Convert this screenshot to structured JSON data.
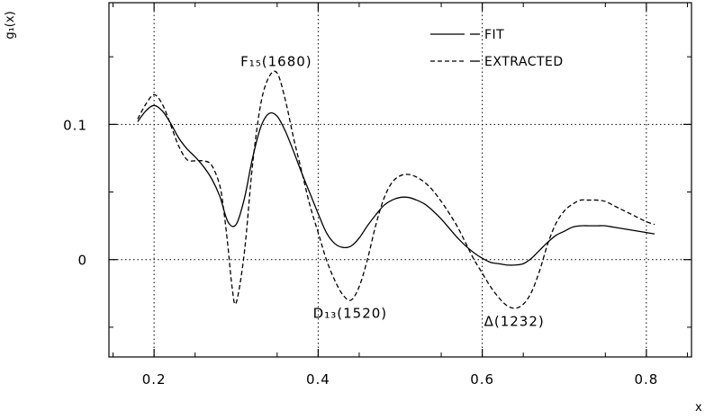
{
  "chart_data": {
    "type": "line",
    "ylabel": "g₁(x)",
    "xlabel": "x",
    "xlim": [
      0.145,
      0.855
    ],
    "ylim": [
      -0.072,
      0.19
    ],
    "x_ticks": [
      {
        "value": 0.2,
        "label": "0.2"
      },
      {
        "value": 0.4,
        "label": "0.4"
      },
      {
        "value": 0.6,
        "label": "0.6"
      },
      {
        "value": 0.8,
        "label": "0.8"
      }
    ],
    "y_ticks": [
      {
        "value": 0,
        "label": "0"
      },
      {
        "value": 0.1,
        "label": "0.1"
      }
    ],
    "grid": true,
    "legend_position": "top-right",
    "series": [
      {
        "name": "FIT",
        "style": "solid",
        "x": [
          0.18,
          0.19,
          0.2,
          0.21,
          0.22,
          0.23,
          0.24,
          0.25,
          0.26,
          0.27,
          0.28,
          0.29,
          0.3,
          0.31,
          0.32,
          0.33,
          0.34,
          0.35,
          0.36,
          0.37,
          0.38,
          0.39,
          0.4,
          0.41,
          0.42,
          0.43,
          0.44,
          0.45,
          0.46,
          0.47,
          0.48,
          0.49,
          0.5,
          0.51,
          0.52,
          0.53,
          0.54,
          0.55,
          0.56,
          0.57,
          0.58,
          0.59,
          0.6,
          0.61,
          0.62,
          0.63,
          0.64,
          0.65,
          0.66,
          0.67,
          0.68,
          0.69,
          0.7,
          0.71,
          0.72,
          0.73,
          0.74,
          0.75,
          0.76,
          0.77,
          0.78,
          0.79,
          0.8,
          0.81
        ],
        "y": [
          0.102,
          0.11,
          0.114,
          0.11,
          0.101,
          0.09,
          0.082,
          0.076,
          0.069,
          0.06,
          0.047,
          0.028,
          0.026,
          0.045,
          0.075,
          0.098,
          0.108,
          0.106,
          0.095,
          0.08,
          0.064,
          0.049,
          0.034,
          0.02,
          0.012,
          0.009,
          0.01,
          0.016,
          0.025,
          0.033,
          0.04,
          0.044,
          0.046,
          0.046,
          0.044,
          0.041,
          0.036,
          0.03,
          0.023,
          0.016,
          0.01,
          0.005,
          0.001,
          -0.002,
          -0.003,
          -0.004,
          -0.004,
          -0.003,
          0.001,
          0.007,
          0.013,
          0.018,
          0.021,
          0.024,
          0.025,
          0.025,
          0.025,
          0.025,
          0.024,
          0.023,
          0.022,
          0.021,
          0.02,
          0.019
        ]
      },
      {
        "name": "EXTRACTED",
        "style": "dashed",
        "x": [
          0.18,
          0.19,
          0.2,
          0.21,
          0.22,
          0.23,
          0.24,
          0.25,
          0.26,
          0.27,
          0.28,
          0.285,
          0.29,
          0.295,
          0.3,
          0.31,
          0.32,
          0.33,
          0.34,
          0.35,
          0.36,
          0.37,
          0.38,
          0.39,
          0.4,
          0.41,
          0.42,
          0.43,
          0.44,
          0.45,
          0.46,
          0.47,
          0.48,
          0.49,
          0.5,
          0.51,
          0.52,
          0.53,
          0.54,
          0.55,
          0.56,
          0.57,
          0.58,
          0.59,
          0.6,
          0.61,
          0.62,
          0.63,
          0.64,
          0.65,
          0.66,
          0.67,
          0.68,
          0.69,
          0.7,
          0.71,
          0.72,
          0.73,
          0.74,
          0.75,
          0.76,
          0.77,
          0.78,
          0.79,
          0.8,
          0.81
        ],
        "y": [
          0.104,
          0.115,
          0.122,
          0.115,
          0.1,
          0.084,
          0.074,
          0.073,
          0.073,
          0.07,
          0.055,
          0.036,
          0.01,
          -0.02,
          -0.032,
          0.005,
          0.07,
          0.115,
          0.135,
          0.138,
          0.118,
          0.09,
          0.065,
          0.04,
          0.02,
          0.0,
          -0.015,
          -0.026,
          -0.03,
          -0.02,
          0.0,
          0.025,
          0.045,
          0.057,
          0.062,
          0.063,
          0.061,
          0.057,
          0.051,
          0.043,
          0.034,
          0.024,
          0.012,
          0.0,
          -0.01,
          -0.02,
          -0.028,
          -0.034,
          -0.036,
          -0.033,
          -0.024,
          -0.008,
          0.012,
          0.027,
          0.036,
          0.041,
          0.044,
          0.044,
          0.044,
          0.043,
          0.04,
          0.037,
          0.034,
          0.031,
          0.028,
          0.026
        ]
      }
    ],
    "annotations": [
      {
        "text": "F₁₅(1680)",
        "x": 0.349,
        "y": 0.143
      },
      {
        "text": "D₁₃(1520)",
        "x": 0.439,
        "y": -0.043
      },
      {
        "text": "Δ(1232)",
        "x": 0.639,
        "y": -0.049
      }
    ]
  }
}
